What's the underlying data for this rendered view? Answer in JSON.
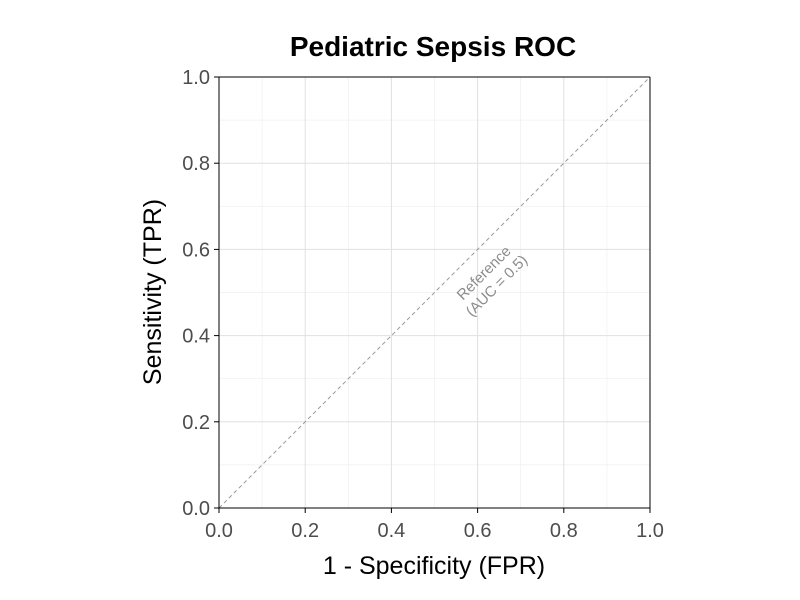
{
  "chart_data": {
    "type": "line",
    "title": "Pediatric Sepsis ROC",
    "xlabel": "1 - Specificity (FPR)",
    "ylabel": "Sensitivity (TPR)",
    "xlim": [
      0,
      1
    ],
    "ylim": [
      0,
      1
    ],
    "x_ticks": [
      0.0,
      0.2,
      0.4,
      0.6,
      0.8,
      1.0
    ],
    "y_ticks": [
      0.0,
      0.2,
      0.4,
      0.6,
      0.8,
      1.0
    ],
    "x_tick_labels": [
      "0.0",
      "0.2",
      "0.4",
      "0.6",
      "0.8",
      "1.0"
    ],
    "y_tick_labels": [
      "0.0",
      "0.2",
      "0.4",
      "0.6",
      "0.8",
      "1.0"
    ],
    "grid": true,
    "series": [
      {
        "x": [
          0,
          1
        ],
        "y": [
          0,
          1
        ],
        "style": "dashed",
        "color": "#9a9a9a"
      }
    ],
    "annotations": [
      {
        "text_line1": "Reference",
        "text_line2": "(AUC = 0.5)",
        "x": 0.63,
        "y": 0.53,
        "rotation_deg": -45,
        "color": "#8c8c8c"
      }
    ]
  }
}
